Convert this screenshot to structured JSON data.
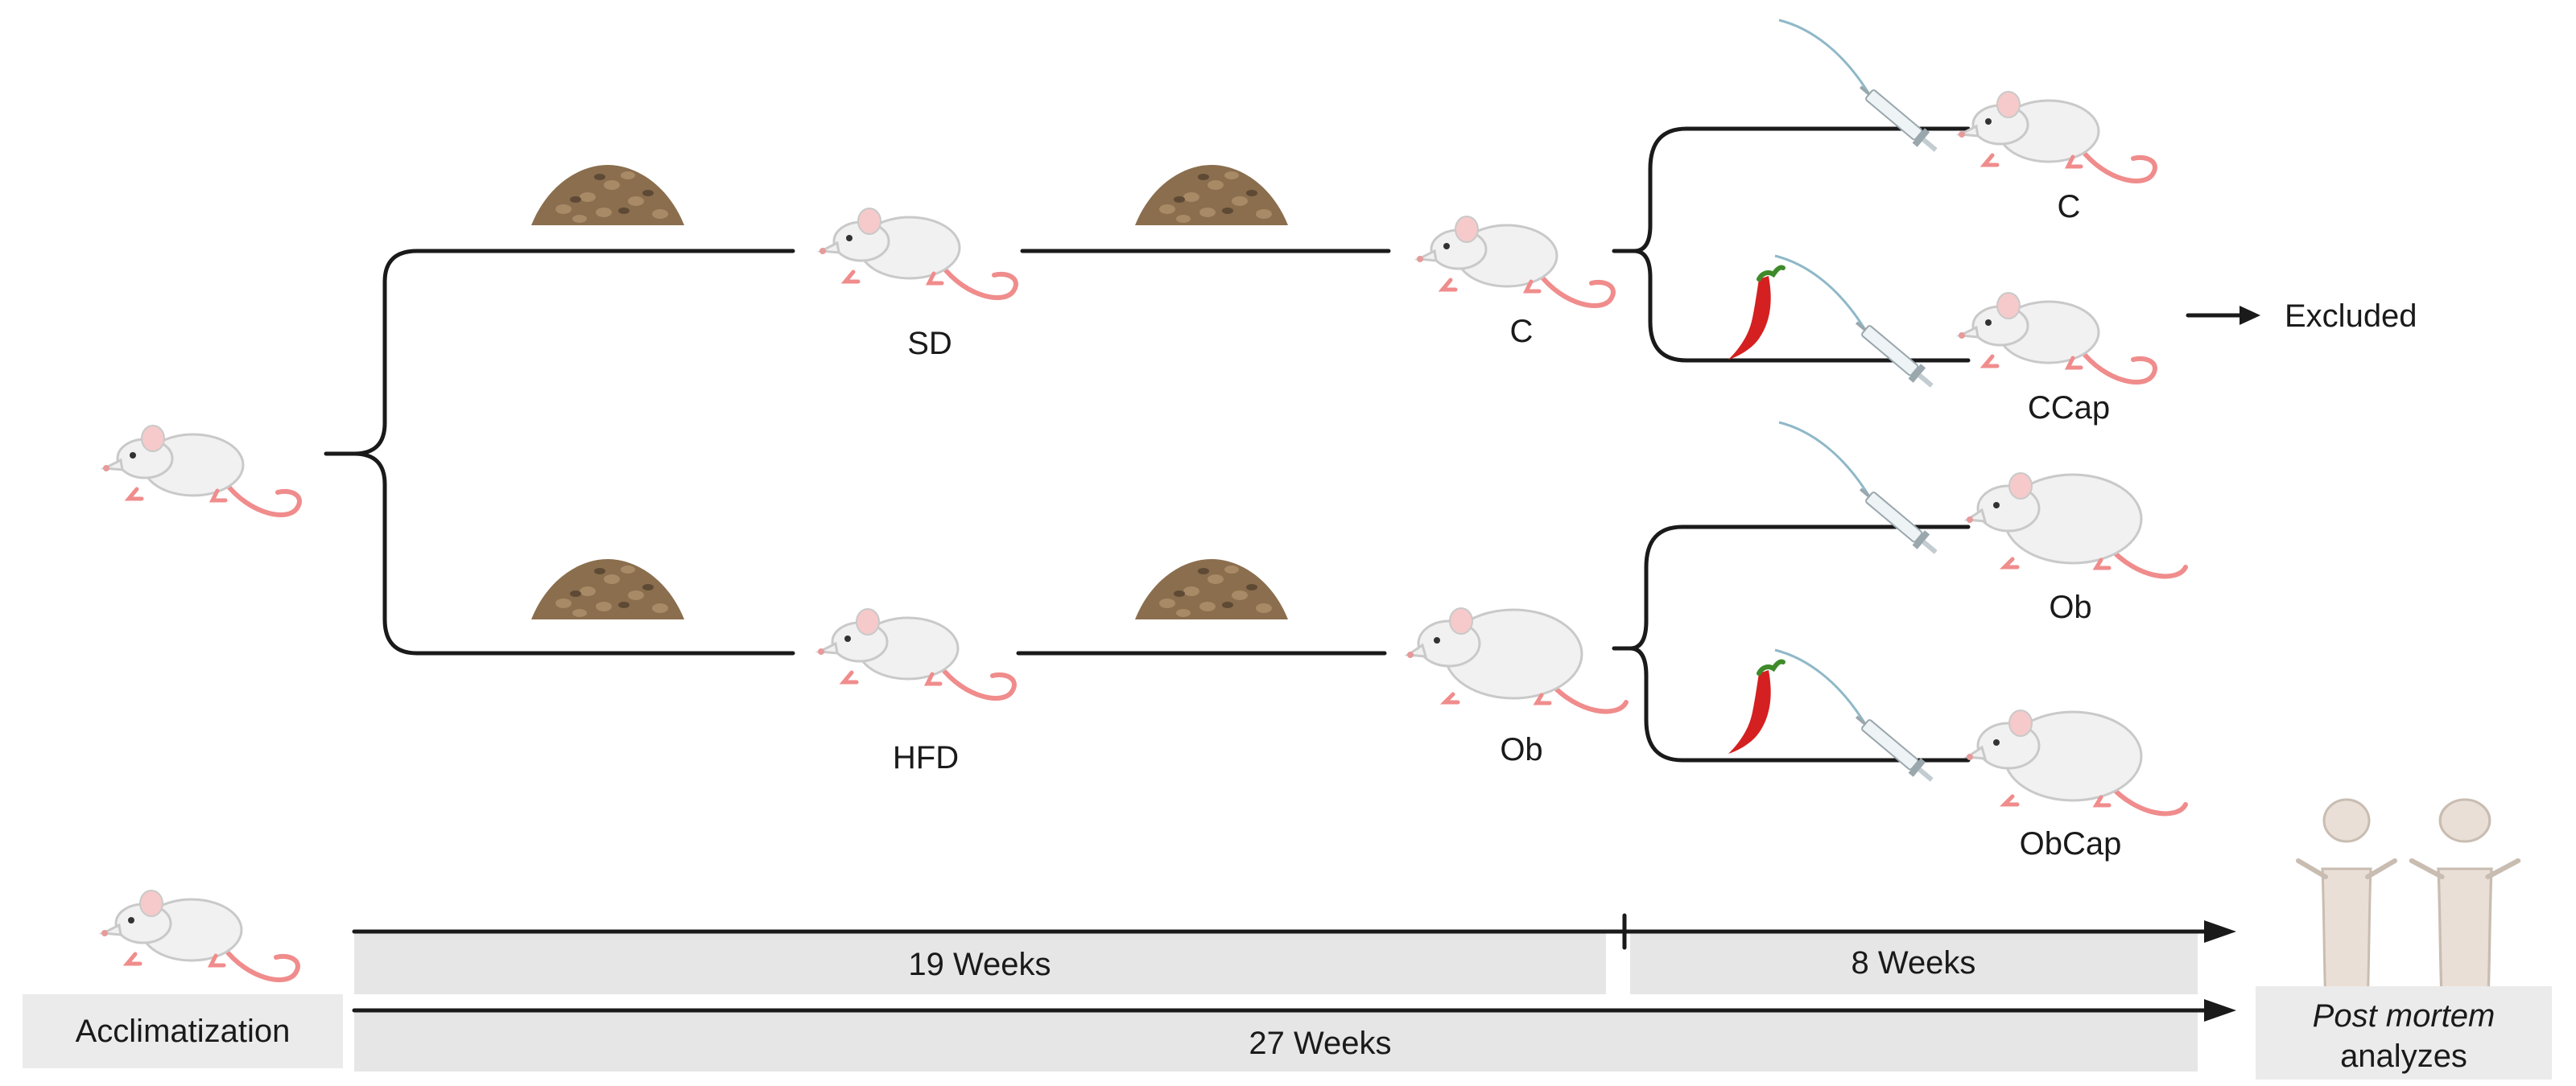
{
  "groups": {
    "sd": "SD",
    "hfd": "HFD",
    "c_mid": "C",
    "ob_mid": "Ob",
    "c_final": "C",
    "ccap_final": "CCap",
    "ob_final": "Ob",
    "obcap_final": "ObCap"
  },
  "excluded": "Excluded",
  "timeline": {
    "acclimatization": "Acclimatization",
    "period_19": "19 Weeks",
    "period_8": "8 Weeks",
    "period_27": "27 Weeks",
    "post_mortem_italic": "Post mortem",
    "post_mortem_rest": "analyzes"
  },
  "icons": {
    "rat": "rat-icon",
    "obese_rat": "obese-rat-icon",
    "chow": "chow-pile-icon",
    "syringe": "syringe-icon",
    "pepper": "chili-pepper-icon",
    "dissected_rat": "dissected-rat-icon"
  },
  "colors": {
    "line": "#1a1a1a",
    "bar": "#e6e6e6",
    "rat_body": "#f1f1f1",
    "rat_tail": "#f08c8c",
    "chow": "#8a6e4e",
    "pepper": "#d42020"
  }
}
